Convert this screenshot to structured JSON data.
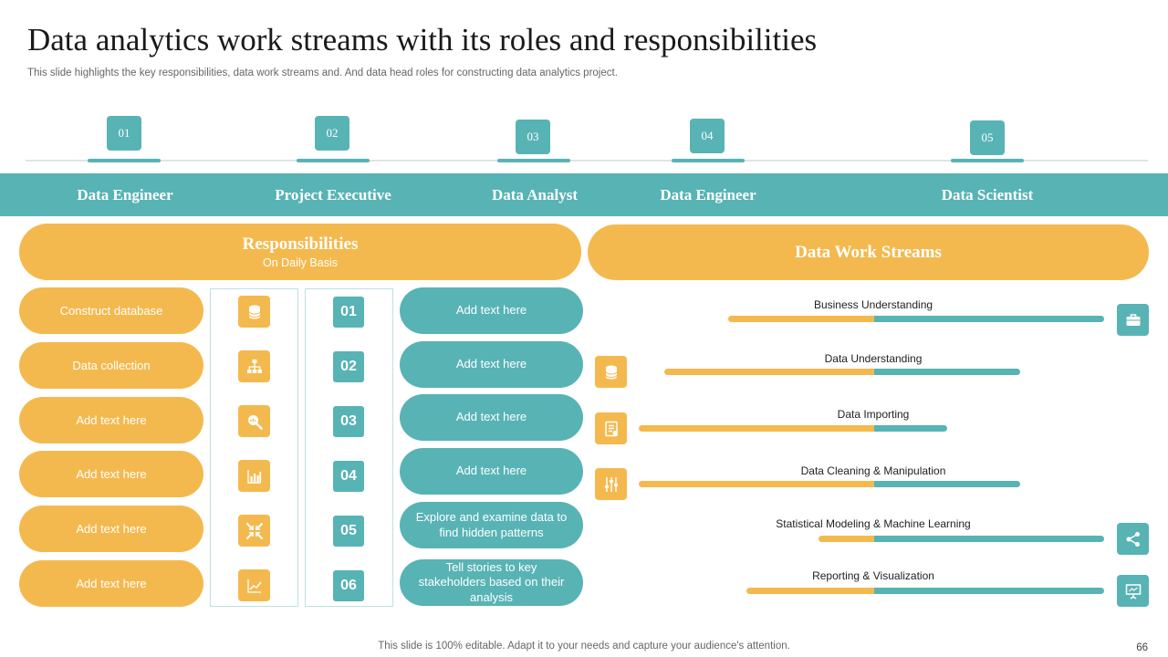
{
  "title": "Data analytics work streams with its roles and responsibilities",
  "subtitle": "This slide highlights the key responsibilities, data work streams and. And data head roles for  constructing data analytics project.",
  "steps": [
    "01",
    "02",
    "03",
    "04",
    "05"
  ],
  "roles": [
    "Data Engineer",
    "Project Executive",
    "Data Analyst",
    "Data Engineer",
    "Data Scientist"
  ],
  "responsibilities": {
    "heading": "Responsibilities",
    "subheading": "On Daily Basis",
    "items": [
      "Construct database",
      "Data collection",
      "Add text here",
      "Add text here",
      "Add text here",
      "Add text here"
    ],
    "icons": [
      "database-icon",
      "hierarchy-icon",
      "search-analytics-icon",
      "bar-chart-icon",
      "arrows-inward-icon",
      "line-chart-icon"
    ],
    "numbers": [
      "01",
      "02",
      "03",
      "04",
      "05",
      "06"
    ],
    "descriptions": [
      "Add text here",
      "Add text here",
      "Add text here",
      "Add text here",
      "Explore and examine data to find hidden patterns",
      "Tell stories to key stakeholders based on their analysis"
    ]
  },
  "work_streams": {
    "heading": "Data Work Streams",
    "items": [
      {
        "label": "Business Understanding"
      },
      {
        "label": "Data Understanding"
      },
      {
        "label": "Data Importing"
      },
      {
        "label": "Data Cleaning & Manipulation"
      },
      {
        "label": "Statistical Modeling & Machine Learning"
      },
      {
        "label": "Reporting & Visualization"
      }
    ],
    "side_icons": [
      "database-icon",
      "document-icon",
      "sliders-icon"
    ],
    "right_icons": [
      "briefcase-icon",
      "share-icon",
      "presentation-icon"
    ]
  },
  "colors": {
    "teal": "#58b3b5",
    "yellow": "#f4b94e"
  },
  "footer": "This slide is 100% editable. Adapt it to your needs and capture your audience's attention.",
  "page_number": "66"
}
